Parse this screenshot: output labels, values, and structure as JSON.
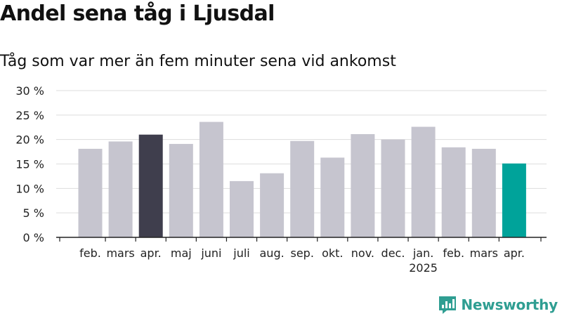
{
  "header": {
    "title": "Andel sena tåg i Ljusdal",
    "subtitle": "Tåg som var mer än fem minuter sena vid ankomst"
  },
  "brand": {
    "name": "Newsworthy",
    "icon": "newsworthy-logo-icon",
    "color": "#2f9e92"
  },
  "colors": {
    "bar_default": "#c6c5cf",
    "bar_highlight_prev": "#3f3e4d",
    "bar_highlight_current": "#00a39a",
    "grid": "#dddddd",
    "axis": "#222222"
  },
  "chart_data": {
    "type": "bar",
    "title": "Andel sena tåg i Ljusdal",
    "subtitle": "Tåg som var mer än fem minuter sena vid ankomst",
    "categories": [
      "feb.",
      "mars",
      "apr.",
      "maj",
      "juni",
      "juli",
      "aug.",
      "sep.",
      "okt.",
      "nov.",
      "dec.",
      "jan.",
      "feb.",
      "mars",
      "apr."
    ],
    "year_labels": [
      {
        "index": 11,
        "label": "2025"
      }
    ],
    "values": [
      18.1,
      19.6,
      21.0,
      19.1,
      23.6,
      11.5,
      13.1,
      19.7,
      16.3,
      21.1,
      20.0,
      22.6,
      18.4,
      18.1,
      15.1
    ],
    "highlights": [
      {
        "index": 2,
        "color": "#3f3e4d"
      },
      {
        "index": 14,
        "color": "#00a39a"
      }
    ],
    "yticks": [
      0,
      5,
      10,
      15,
      20,
      25,
      30
    ],
    "ytick_labels": [
      "0 %",
      "5 %",
      "10 %",
      "15 %",
      "20 %",
      "25 %",
      "30 %"
    ],
    "ylim": [
      0,
      30
    ],
    "grid": true,
    "legend": "none",
    "xlabel": "",
    "ylabel": ""
  }
}
